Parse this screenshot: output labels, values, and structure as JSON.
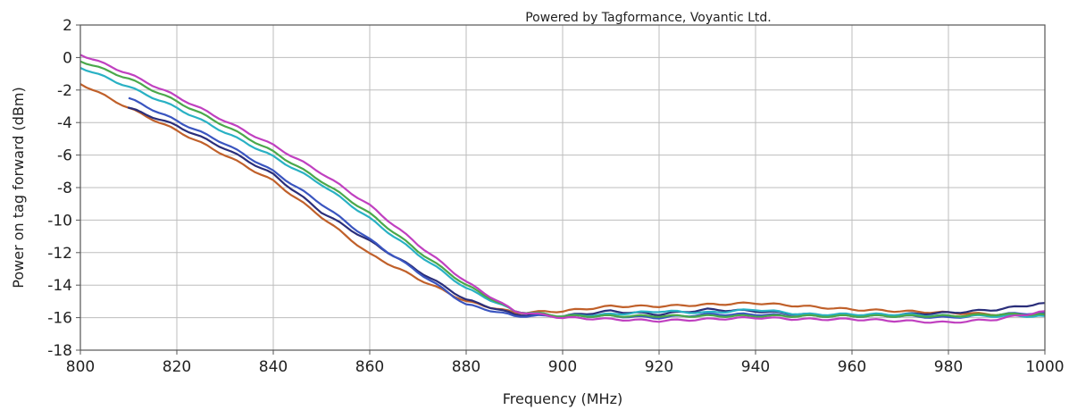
{
  "chart_data": {
    "type": "line",
    "title": "",
    "annotation": "Powered by Tagformance, Voyantic Ltd.",
    "xlabel": "Frequency (MHz)",
    "ylabel": "Power on tag forward (dBm)",
    "xlim": [
      800,
      1000
    ],
    "ylim": [
      -18,
      2
    ],
    "xticks": [
      800,
      820,
      840,
      860,
      880,
      900,
      920,
      940,
      960,
      980,
      1000
    ],
    "yticks": [
      2,
      0,
      -2,
      -4,
      -6,
      -8,
      -10,
      -12,
      -14,
      -16,
      -18
    ],
    "grid": true,
    "legend": "none",
    "x": [
      800,
      810,
      820,
      830,
      840,
      850,
      860,
      870,
      880,
      890,
      900,
      910,
      920,
      930,
      940,
      950,
      960,
      970,
      980,
      990,
      1000
    ],
    "series": [
      {
        "color": "#c0602a",
        "x_start": 800,
        "values": [
          -1.6,
          -3.1,
          -4.5,
          -6.0,
          -7.6,
          -9.8,
          -12.1,
          -13.6,
          -15.0,
          -15.7,
          -15.6,
          -15.3,
          -15.3,
          -15.2,
          -15.1,
          -15.3,
          -15.5,
          -15.6,
          -15.7,
          -15.8,
          -15.8
        ]
      },
      {
        "color": "#2a2e7a",
        "x_start": 812,
        "values": [
          null,
          -3.1,
          -4.2,
          -5.6,
          -7.2,
          -9.5,
          -11.3,
          -13.1,
          -14.9,
          -15.8,
          -15.9,
          -15.6,
          -15.8,
          -15.5,
          -15.6,
          -15.8,
          -15.9,
          -15.8,
          -15.7,
          -15.5,
          -15.1
        ]
      },
      {
        "color": "#3a55c0",
        "x_start": 810,
        "values": [
          null,
          -2.5,
          -3.9,
          -5.3,
          -7.0,
          -9.0,
          -11.2,
          -13.2,
          -15.2,
          -15.9,
          -15.9,
          -15.9,
          -16.0,
          -15.8,
          -15.8,
          -15.9,
          -15.9,
          -15.9,
          -16.0,
          -15.8,
          -15.7
        ]
      },
      {
        "color": "#29b1c4",
        "x_start": 800,
        "values": [
          -0.6,
          -1.8,
          -3.1,
          -4.6,
          -6.1,
          -7.8,
          -9.9,
          -12.1,
          -14.2,
          -15.6,
          -15.9,
          -15.8,
          -15.6,
          -15.7,
          -15.5,
          -15.8,
          -15.8,
          -15.8,
          -15.9,
          -15.9,
          -15.9
        ]
      },
      {
        "color": "#4aa84a",
        "x_start": 800,
        "values": [
          -0.2,
          -1.3,
          -2.7,
          -4.2,
          -5.8,
          -7.6,
          -9.6,
          -11.9,
          -14.0,
          -15.6,
          -15.9,
          -15.9,
          -15.9,
          -15.9,
          -15.9,
          -15.9,
          -15.9,
          -15.9,
          -15.9,
          -15.8,
          -15.8
        ]
      },
      {
        "color": "#c040c0",
        "x_start": 800,
        "values": [
          0.2,
          -1.0,
          -2.4,
          -3.9,
          -5.4,
          -7.1,
          -9.1,
          -11.5,
          -13.8,
          -15.6,
          -16.0,
          -16.1,
          -16.2,
          -16.1,
          -16.0,
          -16.1,
          -16.1,
          -16.2,
          -16.3,
          -16.1,
          -15.6
        ]
      }
    ]
  }
}
